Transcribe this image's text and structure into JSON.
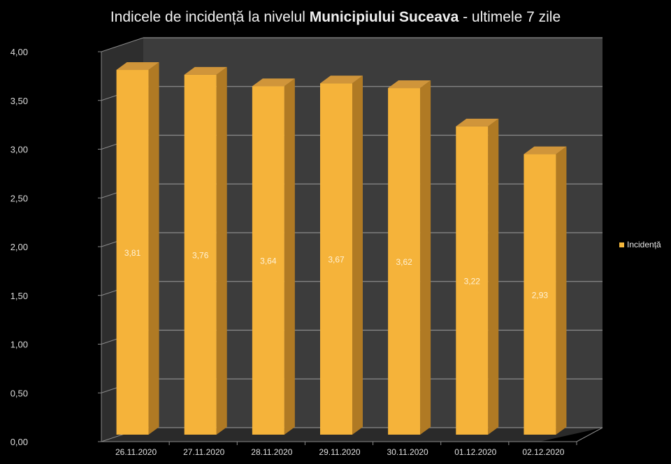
{
  "title": {
    "prefix": "Indicele de incidență la nivelul ",
    "bold": "Municipiului Suceava",
    "suffix": " - ultimele 7 zile"
  },
  "legend": {
    "label": "Incidență",
    "color": "#f5b83d"
  },
  "colors": {
    "bar_front": "#f5b33a",
    "bar_side": "#b07a24",
    "bar_top": "#d0953a",
    "wall": "#3c3c3c",
    "grid": "#8a8a8a"
  },
  "chart_data": {
    "type": "bar",
    "title": "Indicele de incidență la nivelul Municipiului Suceava - ultimele 7 zile",
    "categories": [
      "26.11.2020",
      "27.11.2020",
      "28.11.2020",
      "29.11.2020",
      "30.11.2020",
      "01.12.2020",
      "02.12.2020"
    ],
    "series": [
      {
        "name": "Incidență",
        "values": [
          3.81,
          3.76,
          3.64,
          3.67,
          3.62,
          3.22,
          2.93
        ]
      }
    ],
    "value_labels": [
      "3,81",
      "3,76",
      "3,64",
      "3,67",
      "3,62",
      "3,22",
      "2,93"
    ],
    "yticks": [
      "0,00",
      "0,50",
      "1,00",
      "1,50",
      "2,00",
      "2,50",
      "3,00",
      "3,50",
      "4,00"
    ],
    "xlabel": "",
    "ylabel": "",
    "ylim": [
      0,
      4
    ],
    "grid": true,
    "legend_position": "right",
    "style": "3d"
  }
}
